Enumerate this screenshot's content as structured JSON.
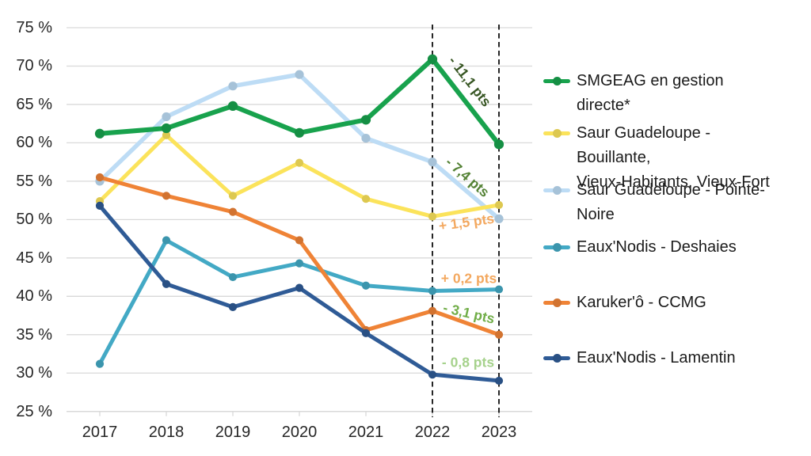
{
  "chart_data": {
    "type": "line",
    "title": "",
    "xlabel": "",
    "ylabel": "",
    "x_categories": [
      "2017",
      "2018",
      "2019",
      "2020",
      "2021",
      "2022",
      "2023"
    ],
    "ylim": [
      25,
      75
    ],
    "y_ticks": [
      {
        "value": 75,
        "label": "75 %"
      },
      {
        "value": 70,
        "label": "70 %"
      },
      {
        "value": 65,
        "label": "65 %"
      },
      {
        "value": 60,
        "label": "60 %"
      },
      {
        "value": 55,
        "label": "55 %"
      },
      {
        "value": 50,
        "label": "50 %"
      },
      {
        "value": 45,
        "label": "45 %"
      },
      {
        "value": 40,
        "label": "40 %"
      },
      {
        "value": 35,
        "label": "35 %"
      },
      {
        "value": 30,
        "label": "30 %"
      },
      {
        "value": 25,
        "label": "25 %"
      }
    ],
    "grid": "horizontal",
    "legend_position": "right",
    "dashed_vlines": [
      "2022",
      "2023"
    ],
    "series": [
      {
        "name": "SMGEAG en gestion directe*",
        "slug": "smgeag-gestion-directe",
        "color": "#18A24D",
        "width": 6,
        "values": [
          61.2,
          61.9,
          64.8,
          61.3,
          63.0,
          70.9,
          59.8
        ]
      },
      {
        "name": "Saur Guadeloupe - Bouillante,\nVieux-Habitants, Vieux-Fort",
        "slug": "saur-bouillante-vieux-habitants-vieux-fort",
        "color": "#FBE35B",
        "width": 5,
        "values": [
          52.4,
          61.0,
          53.1,
          57.4,
          52.7,
          50.4,
          51.9
        ]
      },
      {
        "name": "Saur Guadeloupe - Pointe-Noire",
        "slug": "saur-pointe-noire",
        "color": "#BDDCF5",
        "width": 5.5,
        "values": [
          55.0,
          63.4,
          67.4,
          68.9,
          60.6,
          57.5,
          50.1
        ]
      },
      {
        "name": "Eaux'Nodis - Deshaies",
        "slug": "eaux-nodis-deshaies",
        "color": "#43A9C5",
        "width": 5,
        "values": [
          31.2,
          47.3,
          42.5,
          44.3,
          41.4,
          40.7,
          40.9
        ]
      },
      {
        "name": "Karuker'ô - CCMG",
        "slug": "karukero-ccmg",
        "color": "#EF8336",
        "width": 5,
        "values": [
          55.5,
          53.1,
          51.0,
          47.3,
          35.6,
          38.1,
          35.0
        ]
      },
      {
        "name": "Eaux'Nodis - Lamentin",
        "slug": "eaux-nodis-lamentin",
        "color": "#2F5B96",
        "width": 5,
        "values": [
          51.8,
          41.6,
          38.6,
          41.1,
          35.2,
          29.8,
          29.0
        ]
      }
    ],
    "draw_order": [
      2,
      1,
      3,
      4,
      5,
      0
    ],
    "annotations": [
      {
        "text": "- 11,1 pts",
        "color": "#375623",
        "x": 593,
        "y": 103,
        "rotate": 52
      },
      {
        "text": "- 7,4 pts",
        "color": "#548235",
        "x": 590,
        "y": 224,
        "rotate": 41
      },
      {
        "text": "+ 1,5 pts",
        "color": "#F3A85F",
        "x": 589,
        "y": 281,
        "rotate": -8
      },
      {
        "text": "+ 0,2 pts",
        "color": "#F3A85F",
        "x": 592,
        "y": 352,
        "rotate": 0
      },
      {
        "text": "- 3,1 pts",
        "color": "#70AD47",
        "x": 592,
        "y": 396,
        "rotate": 13
      },
      {
        "text": "- 0,8 pts",
        "color": "#A6D28C",
        "x": 591,
        "y": 458,
        "rotate": 0
      }
    ],
    "colors": {
      "gridline": "#D9D9D9",
      "axis": "#D9D9D9",
      "dashed_line": "#000000",
      "tick_text": "#262626",
      "legend_text": "#1b1b1b",
      "background": "#ffffff"
    }
  }
}
